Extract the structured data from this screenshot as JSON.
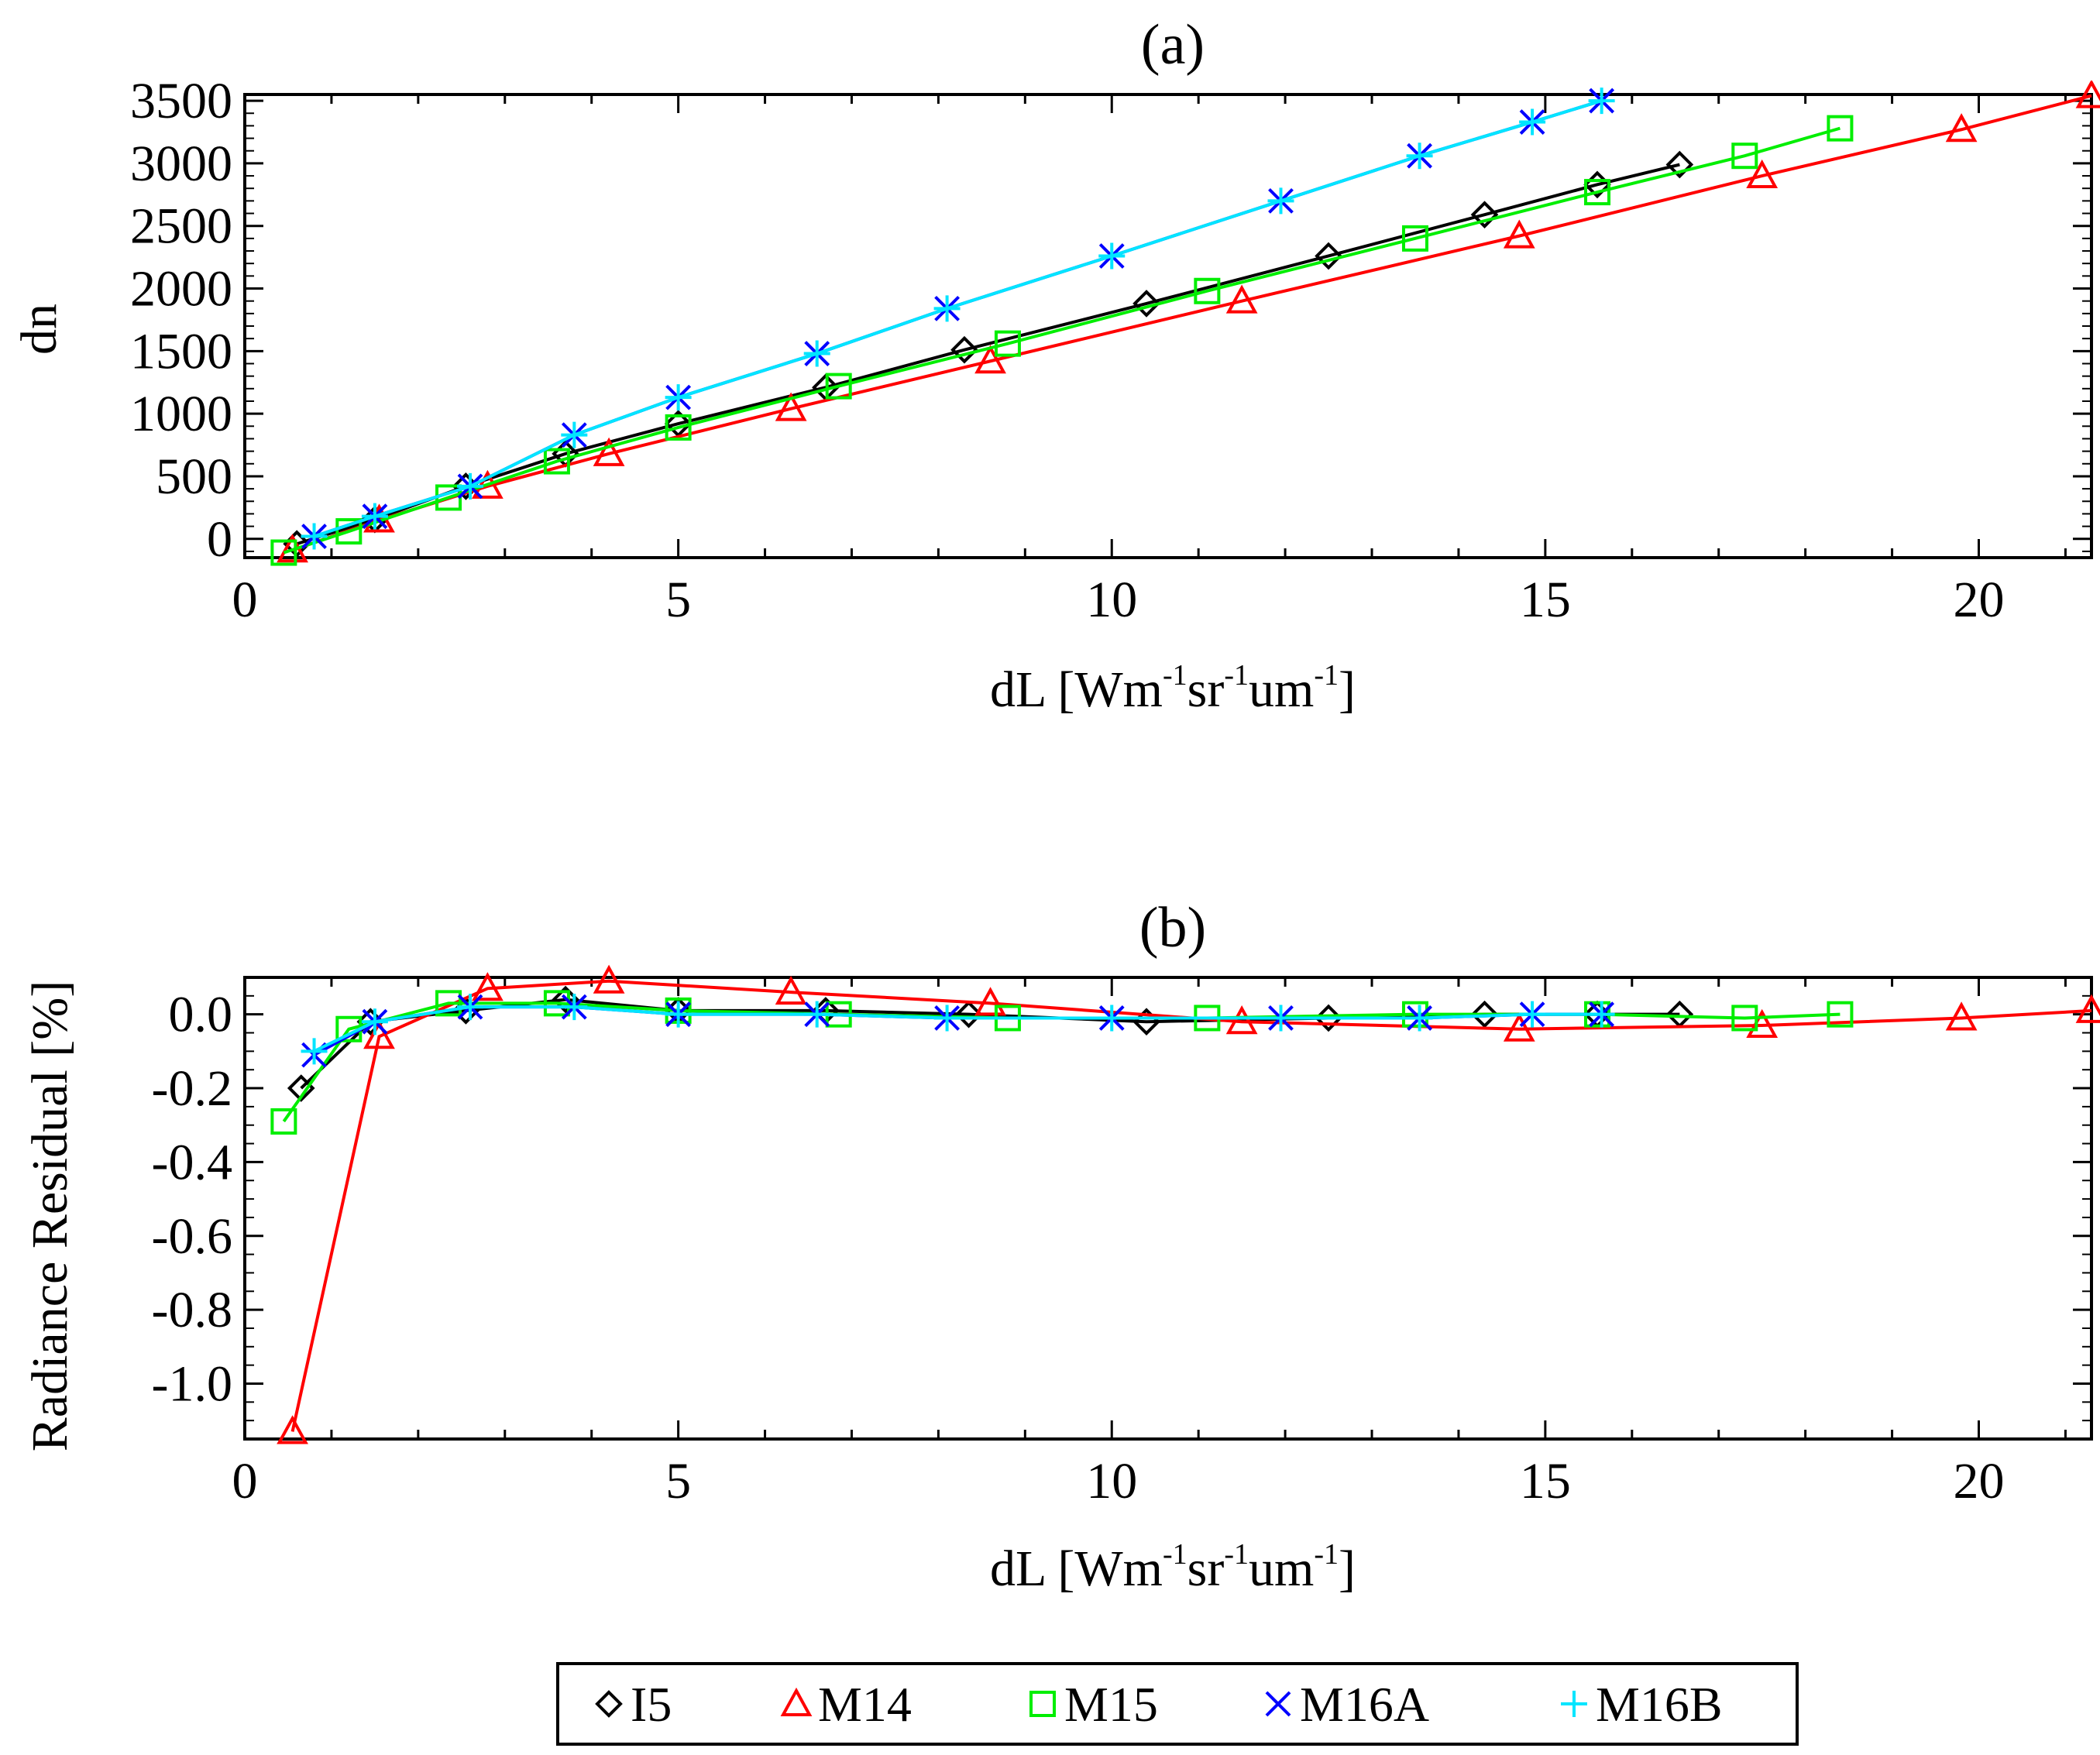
{
  "chart_data": [
    {
      "type": "line",
      "title": "(a)",
      "xlabel": {
        "base": "dL [Wm",
        "p1": "sr",
        "p2": "um",
        "close": "]",
        "exp": "-1"
      },
      "ylabel": "dn",
      "xlim": [
        0,
        21.3
      ],
      "ylim": [
        -150,
        3550
      ],
      "xticks": [
        0,
        5,
        10,
        15,
        20
      ],
      "yticks": [
        0,
        500,
        1000,
        1500,
        2000,
        2500,
        3000,
        3500
      ],
      "xtick_labels": [
        "0",
        "5",
        "10",
        "15",
        "20"
      ],
      "ytick_labels": [
        "0",
        "500",
        "1000",
        "1500",
        "2000",
        "2500",
        "3000",
        "3500"
      ],
      "series": [
        {
          "name": "I5",
          "color": "#000000",
          "marker": "diamond",
          "x": [
            0.6,
            1.5,
            2.55,
            3.7,
            5.0,
            6.7,
            8.3,
            10.4,
            12.5,
            14.3,
            15.6,
            16.55
          ],
          "y": [
            -40,
            155,
            420,
            680,
            920,
            1210,
            1510,
            1880,
            2260,
            2590,
            2830,
            2990
          ]
        },
        {
          "name": "M14",
          "color": "#ff0000",
          "marker": "triangle",
          "x": [
            0.55,
            1.55,
            2.8,
            4.2,
            6.3,
            8.6,
            11.5,
            14.7,
            17.5,
            19.8,
            21.3
          ],
          "y": [
            -90,
            150,
            420,
            680,
            1040,
            1420,
            1900,
            2420,
            2900,
            3270,
            3540
          ]
        },
        {
          "name": "M15",
          "color": "#00ee00",
          "marker": "square",
          "x": [
            0.45,
            1.2,
            2.35,
            3.6,
            5.0,
            6.85,
            8.8,
            11.1,
            13.5,
            15.6,
            17.3,
            18.4
          ],
          "y": [
            -110,
            60,
            330,
            620,
            890,
            1220,
            1560,
            1980,
            2400,
            2770,
            3060,
            3280
          ]
        },
        {
          "name": "M16A",
          "color": "#0000ff",
          "marker": "x",
          "x": [
            0.8,
            1.5,
            2.6,
            3.8,
            5.0,
            6.6,
            8.1,
            10.0,
            11.95,
            13.55,
            14.85,
            15.65
          ],
          "y": [
            20,
            180,
            420,
            830,
            1130,
            1480,
            1840,
            2260,
            2700,
            3060,
            3330,
            3500
          ]
        },
        {
          "name": "M16B",
          "color": "#00e5ff",
          "marker": "plus",
          "x": [
            0.8,
            1.5,
            2.6,
            3.8,
            5.0,
            6.6,
            8.1,
            10.0,
            11.95,
            13.55,
            14.85,
            15.65
          ],
          "y": [
            20,
            180,
            420,
            830,
            1130,
            1480,
            1840,
            2260,
            2700,
            3060,
            3330,
            3500
          ]
        }
      ]
    },
    {
      "type": "line",
      "title": "(b)",
      "xlabel": {
        "base": "dL [Wm",
        "p1": "sr",
        "p2": "um",
        "close": "]",
        "exp": "-1"
      },
      "ylabel": "Radiance Residual [%]",
      "xlim": [
        0,
        21.3
      ],
      "ylim": [
        -1.15,
        0.1
      ],
      "xticks": [
        0,
        5,
        10,
        15,
        20
      ],
      "yticks": [
        0.0,
        -0.2,
        -0.4,
        -0.6,
        -0.8,
        -1.0
      ],
      "xtick_labels": [
        "0",
        "5",
        "10",
        "15",
        "20"
      ],
      "ytick_labels": [
        "0.0",
        "-0.2",
        "-0.4",
        "-0.6",
        "-0.8",
        "-1.0"
      ],
      "series": [
        {
          "name": "I5",
          "color": "#000000",
          "marker": "diamond",
          "x": [
            0.65,
            1.45,
            2.55,
            3.7,
            5.0,
            6.7,
            8.35,
            10.4,
            12.5,
            14.3,
            15.6,
            16.55
          ],
          "y": [
            -0.2,
            -0.02,
            0.01,
            0.04,
            0.01,
            0.01,
            0.0,
            -0.02,
            -0.01,
            0.0,
            0.0,
            0.0
          ]
        },
        {
          "name": "M14",
          "color": "#ff0000",
          "marker": "triangle",
          "x": [
            0.55,
            1.55,
            2.8,
            4.2,
            6.3,
            8.6,
            11.5,
            14.7,
            17.5,
            19.8,
            21.3
          ],
          "y": [
            -1.13,
            -0.06,
            0.07,
            0.09,
            0.06,
            0.03,
            -0.02,
            -0.04,
            -0.03,
            -0.01,
            0.01
          ]
        },
        {
          "name": "M15",
          "color": "#00ee00",
          "marker": "square",
          "x": [
            0.45,
            1.2,
            2.35,
            3.6,
            5.0,
            6.85,
            8.8,
            11.1,
            13.5,
            15.6,
            17.3,
            18.4
          ],
          "y": [
            -0.29,
            -0.04,
            0.03,
            0.03,
            0.01,
            0.0,
            -0.01,
            -0.01,
            0.0,
            0.0,
            -0.01,
            0.0
          ]
        },
        {
          "name": "M16A",
          "color": "#0000ff",
          "marker": "x",
          "x": [
            0.8,
            1.5,
            2.6,
            3.8,
            5.0,
            6.6,
            8.1,
            10.0,
            11.95,
            13.55,
            14.85,
            15.65
          ],
          "y": [
            -0.11,
            -0.02,
            0.02,
            0.02,
            0.0,
            0.0,
            -0.01,
            -0.01,
            -0.01,
            -0.01,
            0.0,
            0.0
          ]
        },
        {
          "name": "M16B",
          "color": "#00e5ff",
          "marker": "plus",
          "x": [
            0.8,
            1.5,
            2.6,
            3.8,
            5.0,
            6.6,
            8.1,
            10.0,
            11.95,
            13.55,
            14.85,
            15.65
          ],
          "y": [
            -0.1,
            -0.02,
            0.02,
            0.02,
            0.0,
            0.0,
            -0.01,
            -0.01,
            -0.01,
            -0.01,
            0.0,
            0.0
          ]
        }
      ]
    }
  ],
  "legend": {
    "placement": "bottom-center",
    "items": [
      {
        "label": "I5",
        "color": "#000000",
        "marker": "diamond"
      },
      {
        "label": "M14",
        "color": "#ff0000",
        "marker": "triangle"
      },
      {
        "label": "M15",
        "color": "#00ee00",
        "marker": "square"
      },
      {
        "label": "M16A",
        "color": "#0000ff",
        "marker": "x"
      },
      {
        "label": "M16B",
        "color": "#00e5ff",
        "marker": "plus"
      }
    ]
  }
}
